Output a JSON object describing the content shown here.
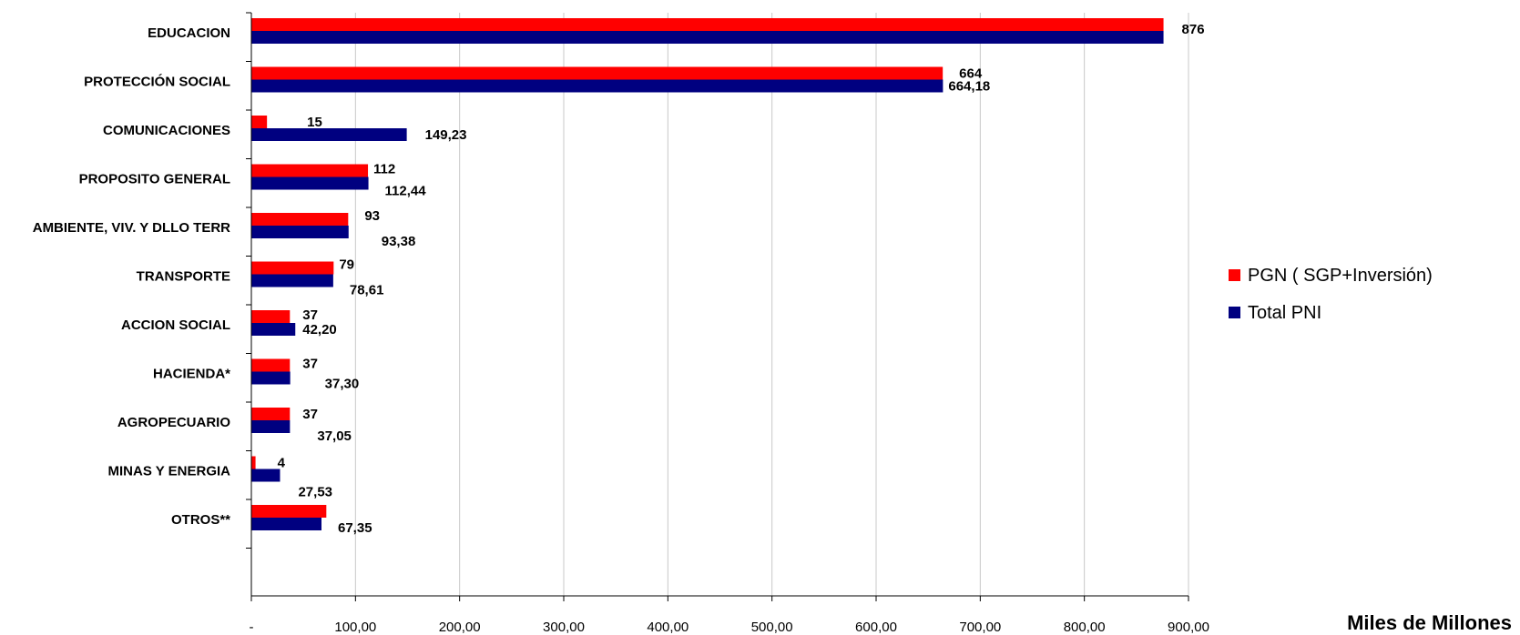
{
  "chart_data": {
    "type": "bar",
    "orientation": "horizontal",
    "categories": [
      "EDUCACION",
      "PROTECCIÓN SOCIAL",
      "COMUNICACIONES",
      "PROPOSITO GENERAL",
      "AMBIENTE, VIV. Y DLLO TERR",
      "TRANSPORTE",
      "ACCION SOCIAL",
      "HACIENDA*",
      "AGROPECUARIO",
      "MINAS Y ENERGIA",
      "OTROS**"
    ],
    "series": [
      {
        "name": "PGN ( SGP+Inversión)",
        "color": "#ff0000",
        "values": [
          876,
          664,
          15,
          112,
          93,
          79,
          37,
          37,
          37,
          4,
          72
        ],
        "data_labels": [
          "876",
          "664",
          "15",
          "112",
          "93",
          "79",
          "37",
          "37",
          "37",
          "4",
          ""
        ]
      },
      {
        "name": "Total PNI",
        "color": "#000080",
        "values": [
          876,
          664.18,
          149.23,
          112.44,
          93.38,
          78.61,
          42.2,
          37.3,
          37.05,
          27.53,
          67.35
        ],
        "data_labels": [
          "",
          "664,18",
          "149,23",
          "112,44",
          "93,38",
          "78,61",
          "42,20",
          "37,30",
          "37,05",
          "27,53",
          "67,35"
        ]
      }
    ],
    "x_ticks": [
      "-",
      "100,00",
      "200,00",
      "300,00",
      "400,00",
      "500,00",
      "600,00",
      "700,00",
      "800,00",
      "900,00"
    ],
    "xlim": [
      0,
      900
    ],
    "xlabel": "Miles de  Millones",
    "title": "",
    "grid": true,
    "legend_position": "right"
  }
}
